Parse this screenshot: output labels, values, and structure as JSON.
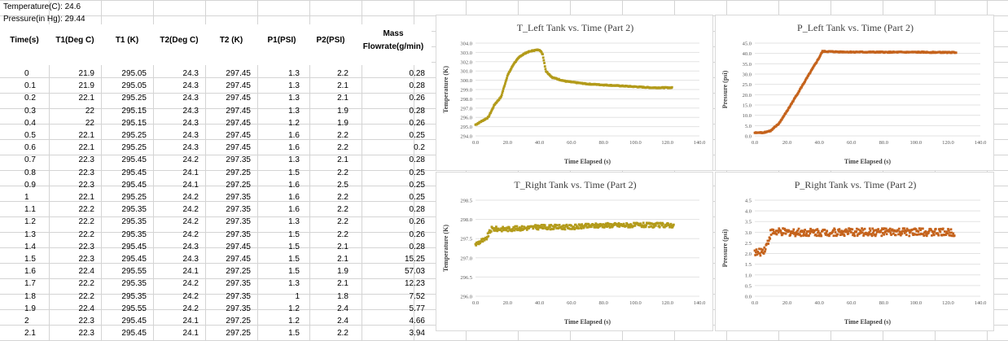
{
  "info": {
    "temperature": "Temperature(C): 24.6",
    "pressure": "Pressure(in Hg): 29.44"
  },
  "table": {
    "headers": [
      "Time(s)",
      "T1(Deg C)",
      "T1 (K)",
      "T2(Deg C)",
      "T2 (K)",
      "P1(PSI)",
      "P2(PSI)",
      "Mass",
      "Flowrate(g/min)"
    ],
    "rows": [
      [
        "0",
        "21.9",
        "295.05",
        "24.3",
        "297.45",
        "1.3",
        "2.2",
        "0.28"
      ],
      [
        "0.1",
        "21.9",
        "295.05",
        "24.3",
        "297.45",
        "1.3",
        "2.1",
        "0.28"
      ],
      [
        "0.2",
        "22.1",
        "295.25",
        "24.3",
        "297.45",
        "1.3",
        "2.1",
        "0.26"
      ],
      [
        "0.3",
        "22",
        "295.15",
        "24.3",
        "297.45",
        "1.3",
        "1.9",
        "0.28"
      ],
      [
        "0.4",
        "22",
        "295.15",
        "24.3",
        "297.45",
        "1.2",
        "1.9",
        "0.26"
      ],
      [
        "0.5",
        "22.1",
        "295.25",
        "24.3",
        "297.45",
        "1.6",
        "2.2",
        "0.25"
      ],
      [
        "0.6",
        "22.1",
        "295.25",
        "24.3",
        "297.45",
        "1.6",
        "2.2",
        "0.2"
      ],
      [
        "0.7",
        "22.3",
        "295.45",
        "24.2",
        "297.35",
        "1.3",
        "2.1",
        "0.28"
      ],
      [
        "0.8",
        "22.3",
        "295.45",
        "24.1",
        "297.25",
        "1.5",
        "2.2",
        "0.25"
      ],
      [
        "0.9",
        "22.3",
        "295.45",
        "24.1",
        "297.25",
        "1.6",
        "2.5",
        "0.25"
      ],
      [
        "1",
        "22.1",
        "295.25",
        "24.2",
        "297.35",
        "1.6",
        "2.2",
        "0.25"
      ],
      [
        "1.1",
        "22.2",
        "295.35",
        "24.2",
        "297.35",
        "1.6",
        "2.2",
        "0.28"
      ],
      [
        "1.2",
        "22.2",
        "295.35",
        "24.2",
        "297.35",
        "1.3",
        "2.2",
        "0.26"
      ],
      [
        "1.3",
        "22.2",
        "295.35",
        "24.2",
        "297.35",
        "1.5",
        "2.2",
        "0.26"
      ],
      [
        "1.4",
        "22.3",
        "295.45",
        "24.3",
        "297.45",
        "1.5",
        "2.1",
        "0.28"
      ],
      [
        "1.5",
        "22.3",
        "295.45",
        "24.3",
        "297.45",
        "1.5",
        "2.1",
        "15.25"
      ],
      [
        "1.6",
        "22.4",
        "295.55",
        "24.1",
        "297.25",
        "1.5",
        "1.9",
        "57.03"
      ],
      [
        "1.7",
        "22.2",
        "295.35",
        "24.2",
        "297.35",
        "1.3",
        "2.1",
        "12.23"
      ],
      [
        "1.8",
        "22.2",
        "295.35",
        "24.2",
        "297.35",
        "1",
        "1.8",
        "7.52"
      ],
      [
        "1.9",
        "22.4",
        "295.55",
        "24.2",
        "297.35",
        "1.2",
        "2.4",
        "5.77"
      ],
      [
        "2",
        "22.3",
        "295.45",
        "24.1",
        "297.25",
        "1.2",
        "2.4",
        "4.66"
      ],
      [
        "2.1",
        "22.3",
        "295.45",
        "24.1",
        "297.25",
        "1.5",
        "2.2",
        "3.94"
      ]
    ]
  },
  "chart_data": [
    {
      "type": "scatter",
      "title": "T_Left Tank vs. Time (Part 2)",
      "xlabel": "Time Elapsed (s)",
      "ylabel": "Temperature (K)",
      "xlim": [
        0,
        140
      ],
      "ylim": [
        294,
        304
      ],
      "x_ticks": [
        "0.0",
        "20.0",
        "40.0",
        "60.0",
        "80.0",
        "100.0",
        "120.0",
        "140.0"
      ],
      "y_ticks": [
        "294.0",
        "295.0",
        "296.0",
        "297.0",
        "298.0",
        "299.0",
        "300.0",
        "301.0",
        "302.0",
        "303.0",
        "304.0"
      ],
      "color": "#b39b1a",
      "series": [
        {
          "x": [
            0,
            4,
            8,
            12,
            16,
            20,
            24,
            28,
            32,
            36,
            40,
            42,
            44,
            48,
            52,
            56,
            60,
            70,
            80,
            90,
            100,
            110,
            120,
            123
          ],
          "values": [
            295.2,
            295.6,
            296.0,
            297.4,
            298.2,
            300.5,
            301.8,
            302.6,
            303.0,
            303.2,
            303.3,
            302.8,
            301.0,
            300.3,
            300.1,
            299.9,
            299.8,
            299.6,
            299.5,
            299.4,
            299.3,
            299.2,
            299.2,
            299.2
          ]
        }
      ]
    },
    {
      "type": "scatter",
      "title": "P_Left Tank vs. Time (Part 2)",
      "xlabel": "Time Elapsed (s)",
      "ylabel": "Pressure (psi)",
      "xlim": [
        0,
        140
      ],
      "ylim": [
        0,
        45
      ],
      "x_ticks": [
        "0.0",
        "20.0",
        "40.0",
        "60.0",
        "80.0",
        "100.0",
        "120.0",
        "140.0"
      ],
      "y_ticks": [
        "0.0",
        "5.0",
        "10.0",
        "15.0",
        "20.0",
        "25.0",
        "30.0",
        "35.0",
        "40.0",
        "45.0"
      ],
      "color": "#c5631c",
      "series": [
        {
          "x": [
            0,
            5,
            10,
            15,
            20,
            25,
            30,
            35,
            40,
            42,
            50,
            60,
            80,
            100,
            120,
            125
          ],
          "values": [
            1.5,
            1.6,
            2.5,
            6.0,
            12.0,
            18.5,
            25.0,
            31.5,
            38.0,
            41.0,
            40.8,
            40.7,
            40.6,
            40.6,
            40.5,
            40.5
          ]
        }
      ]
    },
    {
      "type": "scatter",
      "title": "T_Right Tank vs. Time (Part 2)",
      "xlabel": "Time Elapsed (s)",
      "ylabel": "Temperature (K)",
      "xlim": [
        0,
        140
      ],
      "ylim": [
        296,
        298.5
      ],
      "x_ticks": [
        "0.0",
        "20.0",
        "40.0",
        "60.0",
        "80.0",
        "100.0",
        "120.0",
        "140.0"
      ],
      "y_ticks": [
        "296.0",
        "296.5",
        "297.0",
        "297.5",
        "298.0",
        "298.5"
      ],
      "color": "#b39b1a",
      "series": [
        {
          "x": [
            0,
            2,
            4,
            6,
            8,
            10,
            20,
            40,
            60,
            80,
            100,
            120,
            124
          ],
          "values": [
            297.35,
            297.4,
            297.45,
            297.45,
            297.6,
            297.75,
            297.75,
            297.8,
            297.8,
            297.85,
            297.85,
            297.85,
            297.85
          ]
        }
      ]
    },
    {
      "type": "scatter",
      "title": "P_Right Tank vs. Time (Part 2)",
      "xlabel": "Time Elapsed (s)",
      "ylabel": "Pressure (psi)",
      "xlim": [
        0,
        140
      ],
      "ylim": [
        0,
        4.5
      ],
      "x_ticks": [
        "0.0",
        "20.0",
        "40.0",
        "60.0",
        "80.0",
        "100.0",
        "120.0",
        "140.0"
      ],
      "y_ticks": [
        "0.0",
        "0.5",
        "1.0",
        "1.5",
        "2.0",
        "2.5",
        "3.0",
        "3.5",
        "4.0",
        "4.5"
      ],
      "color": "#c5631c",
      "series": [
        {
          "x": [
            0,
            2,
            4,
            6,
            8,
            10,
            20,
            40,
            60,
            80,
            100,
            120,
            124
          ],
          "values": [
            2.1,
            2.0,
            2.1,
            2.2,
            2.5,
            3.0,
            3.0,
            3.0,
            3.0,
            3.0,
            3.0,
            3.0,
            3.0
          ]
        }
      ]
    }
  ]
}
